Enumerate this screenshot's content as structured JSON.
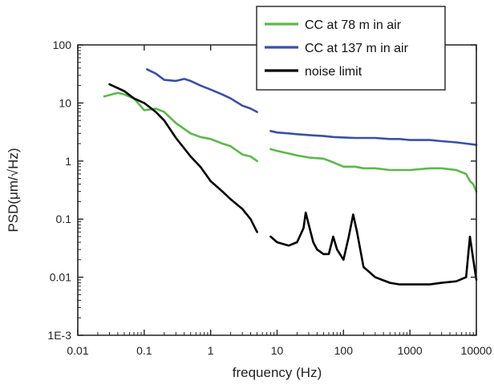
{
  "chart_data": {
    "type": "line",
    "xlabel": "frequency (Hz)",
    "ylabel": "PSD(μm/√Hz)",
    "x_scale": "log",
    "y_scale": "log",
    "xlim": [
      0.01,
      10000
    ],
    "ylim": [
      0.001,
      100
    ],
    "x_ticks": [
      0.01,
      0.1,
      1,
      10,
      100,
      1000,
      10000
    ],
    "x_tick_labels": [
      "0.01",
      "0.1",
      "1",
      "10",
      "100",
      "1000",
      "10000"
    ],
    "y_ticks": [
      0.001,
      0.01,
      0.1,
      1,
      10,
      100
    ],
    "y_tick_labels": [
      "1E-3",
      "0.01",
      "0.1",
      "1",
      "10",
      "100"
    ],
    "grid": false,
    "legend_position": "top-right",
    "series": [
      {
        "name": "CC at 78 m in air",
        "color": "#5cb84a",
        "x": [
          0.025,
          0.04,
          0.05,
          0.07,
          0.1,
          0.15,
          0.2,
          0.3,
          0.5,
          0.7,
          1,
          1.5,
          2,
          3,
          4,
          5,
          null,
          8,
          10,
          15,
          20,
          30,
          50,
          70,
          100,
          150,
          200,
          300,
          500,
          700,
          1000,
          2000,
          3000,
          5000,
          7000,
          8000,
          9000,
          10000
        ],
        "y": [
          13,
          15,
          14,
          12,
          7.5,
          8,
          7,
          4.5,
          3,
          2.6,
          2.4,
          2.0,
          1.8,
          1.3,
          1.2,
          1.0,
          null,
          1.6,
          1.5,
          1.35,
          1.25,
          1.15,
          1.1,
          0.95,
          0.8,
          0.8,
          0.75,
          0.75,
          0.7,
          0.7,
          0.7,
          0.75,
          0.75,
          0.7,
          0.6,
          0.45,
          0.4,
          0.3
        ]
      },
      {
        "name": "CC at 137 m in air",
        "color": "#3a50a4",
        "x": [
          0.11,
          0.15,
          0.2,
          0.3,
          0.4,
          0.5,
          0.7,
          1,
          1.5,
          2,
          3,
          4,
          5,
          null,
          8,
          10,
          15,
          20,
          30,
          50,
          70,
          100,
          150,
          200,
          300,
          500,
          700,
          1000,
          1500,
          2000,
          3000,
          5000,
          7000,
          10000
        ],
        "y": [
          38,
          32,
          25,
          24,
          26,
          24,
          20,
          17,
          14,
          12,
          9,
          8,
          7,
          null,
          3.3,
          3.1,
          3.0,
          2.9,
          2.8,
          2.7,
          2.6,
          2.55,
          2.5,
          2.5,
          2.5,
          2.4,
          2.4,
          2.3,
          2.3,
          2.3,
          2.2,
          2.1,
          2.0,
          1.9
        ]
      },
      {
        "name": "noise limit",
        "color": "#000000",
        "x": [
          0.03,
          0.05,
          0.07,
          0.1,
          0.15,
          0.2,
          0.3,
          0.5,
          0.7,
          1,
          1.5,
          2,
          3,
          4,
          5,
          null,
          8,
          10,
          15,
          20,
          25,
          27,
          30,
          35,
          40,
          50,
          60,
          70,
          80,
          100,
          120,
          140,
          160,
          200,
          300,
          500,
          700,
          1000,
          2000,
          3000,
          5000,
          7000,
          8000,
          9000,
          10000
        ],
        "y": [
          21,
          16,
          12,
          10,
          7,
          5,
          2.5,
          1.2,
          0.8,
          0.45,
          0.3,
          0.22,
          0.15,
          0.1,
          0.06,
          null,
          0.05,
          0.04,
          0.035,
          0.04,
          0.07,
          0.13,
          0.08,
          0.04,
          0.03,
          0.025,
          0.025,
          0.05,
          0.03,
          0.02,
          0.05,
          0.12,
          0.06,
          0.015,
          0.01,
          0.008,
          0.0075,
          0.0075,
          0.0075,
          0.008,
          0.0085,
          0.01,
          0.05,
          0.02,
          0.009
        ]
      }
    ]
  }
}
